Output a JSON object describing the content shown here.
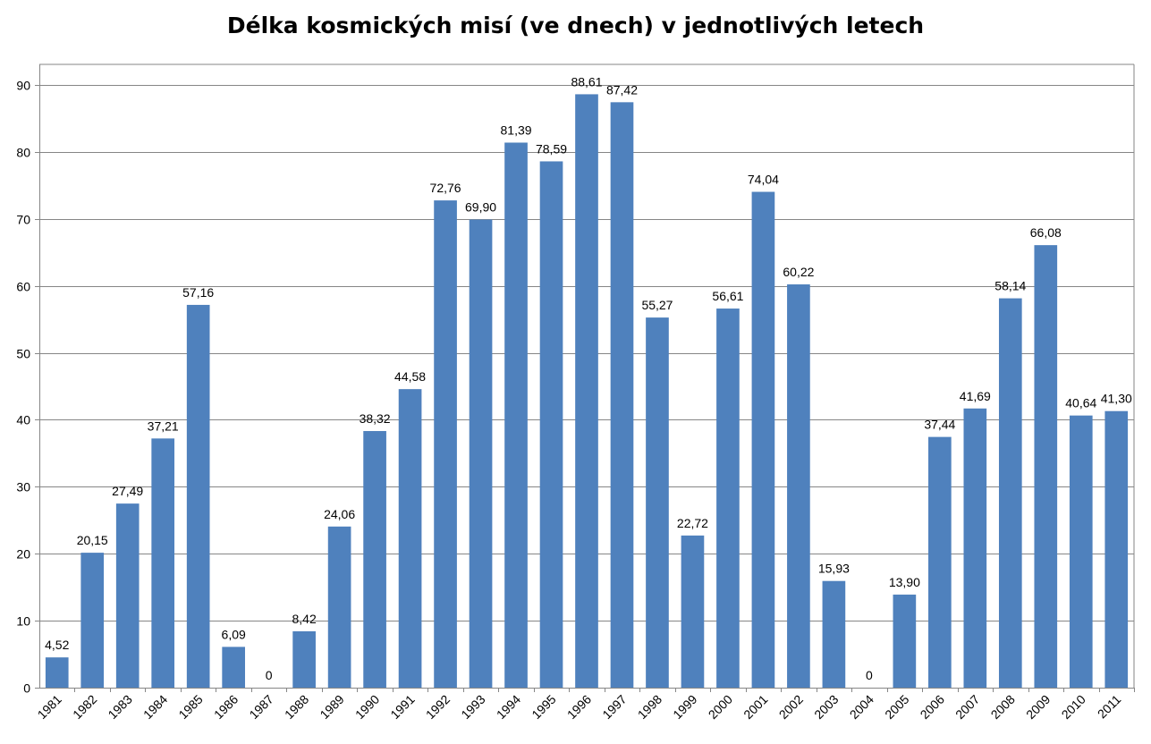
{
  "chart_data": {
    "type": "bar",
    "title": "Délka kosmických misí (ve dnech) v jednotlivých letech",
    "xlabel": "",
    "ylabel": "",
    "ylim": [
      0,
      90
    ],
    "yticks": [
      0,
      10,
      20,
      30,
      40,
      50,
      60,
      70,
      80,
      90
    ],
    "grid": true,
    "legend": "none",
    "bar_color": "#4f81bd",
    "categories": [
      "1981",
      "1982",
      "1983",
      "1984",
      "1985",
      "1986",
      "1987",
      "1988",
      "1989",
      "1990",
      "1991",
      "1992",
      "1993",
      "1994",
      "1995",
      "1996",
      "1997",
      "1998",
      "1999",
      "2000",
      "2001",
      "2002",
      "2003",
      "2004",
      "2005",
      "2006",
      "2007",
      "2008",
      "2009",
      "2010",
      "2011"
    ],
    "values": [
      4.52,
      20.15,
      27.49,
      37.21,
      57.16,
      6.09,
      0,
      8.42,
      24.06,
      38.32,
      44.58,
      72.76,
      69.9,
      81.39,
      78.59,
      88.61,
      87.42,
      55.27,
      22.72,
      56.61,
      74.04,
      60.22,
      15.93,
      0,
      13.9,
      37.44,
      41.69,
      58.14,
      66.08,
      40.64,
      41.3
    ],
    "data_labels": [
      "4,52",
      "20,15",
      "27,49",
      "37,21",
      "57,16",
      "6,09",
      "0",
      "8,42",
      "24,06",
      "38,32",
      "44,58",
      "72,76",
      "69,90",
      "81,39",
      "78,59",
      "88,61",
      "87,42",
      "55,27",
      "22,72",
      "56,61",
      "74,04",
      "60,22",
      "15,93",
      "0",
      "13,90",
      "37,44",
      "41,69",
      "58,14",
      "66,08",
      "40,64",
      "41,30"
    ]
  }
}
